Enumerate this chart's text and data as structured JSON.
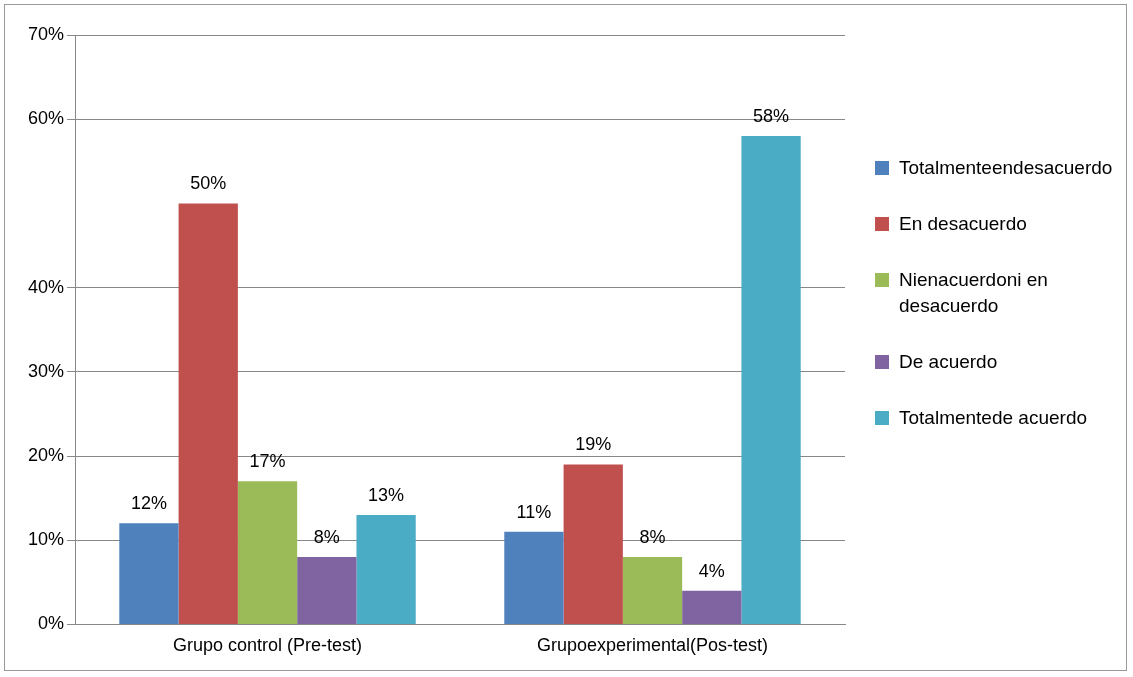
{
  "chart_data": {
    "type": "bar",
    "categories": [
      "Grupo control (Pre-test)",
      "Grupoexperimental(Pos-test)"
    ],
    "series": [
      {
        "name": "Totalmenteendesacuerdo",
        "color": "#4f81bd",
        "values": [
          12,
          11
        ],
        "value_labels": [
          "12%",
          "11%"
        ]
      },
      {
        "name": "En desacuerdo",
        "color": "#c0504d",
        "values": [
          50,
          19
        ],
        "value_labels": [
          "50%",
          "19%"
        ]
      },
      {
        "name": "Nienacuerdoni en desacuerdo",
        "color": "#9bbb59",
        "values": [
          17,
          8
        ],
        "value_labels": [
          "17%",
          "8%"
        ]
      },
      {
        "name": "De acuerdo",
        "color": "#8064a2",
        "values": [
          8,
          4
        ],
        "value_labels": [
          "8%",
          "4%"
        ]
      },
      {
        "name": "Totalmentede acuerdo",
        "color": "#4bacc6",
        "values": [
          13,
          58
        ],
        "value_labels": [
          "13%",
          "58%"
        ]
      }
    ],
    "ylim": [
      0,
      70
    ],
    "yticks": [
      {
        "value": 0,
        "label": "0%"
      },
      {
        "value": 10,
        "label": "10%"
      },
      {
        "value": 20,
        "label": "20%"
      },
      {
        "value": 30,
        "label": "30%"
      },
      {
        "value": 40,
        "label": "40%"
      },
      {
        "value": 60,
        "label": "60%"
      },
      {
        "value": 70,
        "label": "70%"
      }
    ],
    "grid": "y",
    "legend": "right"
  }
}
